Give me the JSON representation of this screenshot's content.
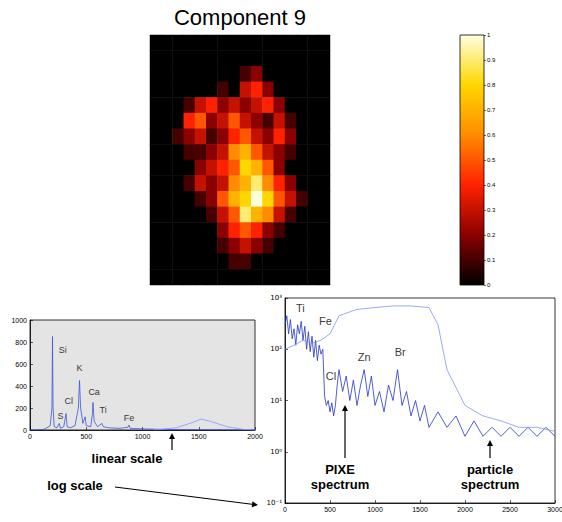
{
  "chart_data": [
    {
      "type": "heatmap",
      "title": "Component 9",
      "tick_labels": false,
      "colorbar_range": [
        0,
        1
      ],
      "colorbar_ticks": [
        0,
        0.1,
        0.2,
        0.3,
        0.4,
        0.5,
        0.6,
        0.7,
        0.8,
        0.9,
        1
      ],
      "cells": [
        [
          0,
          0,
          0,
          0,
          0,
          0,
          0,
          0,
          0,
          0,
          0,
          0,
          0,
          0,
          0,
          0
        ],
        [
          0,
          0,
          0,
          0,
          0,
          0,
          0,
          0,
          0,
          0,
          0,
          0,
          0,
          0,
          0,
          0
        ],
        [
          0,
          0,
          0,
          0,
          0,
          0,
          0,
          0,
          0.1,
          0.2,
          0,
          0,
          0,
          0,
          0,
          0
        ],
        [
          0,
          0,
          0,
          0,
          0,
          0,
          0.1,
          0,
          0.3,
          0.4,
          0.2,
          0,
          0,
          0,
          0,
          0
        ],
        [
          0,
          0,
          0,
          0.1,
          0.3,
          0.4,
          0.2,
          0.3,
          0.2,
          0.3,
          0.4,
          0.2,
          0,
          0,
          0,
          0
        ],
        [
          0,
          0,
          0,
          0.4,
          0.5,
          0.2,
          0.3,
          0.5,
          0.3,
          0.2,
          0.1,
          0.3,
          0.1,
          0,
          0,
          0
        ],
        [
          0,
          0,
          0.1,
          0.2,
          0.3,
          0.1,
          0.2,
          0.4,
          0.5,
          0.3,
          0.2,
          0.4,
          0.2,
          0,
          0,
          0
        ],
        [
          0,
          0,
          0,
          0.1,
          0.1,
          0.2,
          0.3,
          0.6,
          0.7,
          0.5,
          0.3,
          0.2,
          0.1,
          0,
          0,
          0
        ],
        [
          0,
          0,
          0,
          0,
          0.2,
          0.3,
          0.4,
          0.5,
          0.8,
          0.7,
          0.5,
          0.2,
          0,
          0,
          0,
          0
        ],
        [
          0,
          0,
          0,
          0.1,
          0.3,
          0.2,
          0.3,
          0.6,
          0.7,
          0.9,
          0.6,
          0.4,
          0.2,
          0,
          0,
          0
        ],
        [
          0,
          0,
          0,
          0,
          0.1,
          0.2,
          0.5,
          0.7,
          0.8,
          1.0,
          0.8,
          0.5,
          0.3,
          0.1,
          0,
          0
        ],
        [
          0,
          0,
          0,
          0,
          0,
          0.1,
          0.3,
          0.5,
          0.9,
          0.7,
          0.6,
          0.3,
          0.1,
          0,
          0,
          0
        ],
        [
          0,
          0,
          0,
          0,
          0,
          0,
          0.2,
          0.4,
          0.5,
          0.4,
          0.2,
          0.1,
          0,
          0,
          0,
          0
        ],
        [
          0,
          0,
          0,
          0,
          0,
          0,
          0.1,
          0.2,
          0.3,
          0.2,
          0.1,
          0,
          0,
          0,
          0,
          0
        ],
        [
          0,
          0,
          0,
          0,
          0,
          0,
          0,
          0.1,
          0.1,
          0,
          0,
          0,
          0,
          0,
          0,
          0
        ],
        [
          0,
          0,
          0,
          0,
          0,
          0,
          0,
          0,
          0,
          0,
          0,
          0,
          0,
          0,
          0,
          0
        ]
      ]
    },
    {
      "type": "line",
      "grid": false,
      "annotations": [
        "linear scale"
      ],
      "xlim": [
        0,
        2000
      ],
      "xticks": [
        0,
        500,
        1000,
        1500,
        2000
      ],
      "ylim": [
        0,
        1000
      ],
      "yticks": [
        0,
        200,
        400,
        600,
        800,
        1000
      ],
      "series": [
        {
          "color": "#3f55d6",
          "x": [
            0,
            120,
            150,
            180,
            195,
            200,
            205,
            215,
            240,
            260,
            270,
            300,
            320,
            330,
            360,
            400,
            430,
            440,
            450,
            470,
            490,
            500,
            540,
            555,
            560,
            570,
            600,
            640,
            650,
            700,
            800,
            870,
            880,
            890,
            1000,
            1200,
            1500,
            1700,
            2000
          ],
          "values": [
            0,
            5,
            20,
            40,
            200,
            850,
            200,
            30,
            20,
            60,
            15,
            30,
            150,
            30,
            20,
            40,
            200,
            450,
            200,
            60,
            120,
            40,
            30,
            150,
            250,
            80,
            30,
            60,
            30,
            20,
            15,
            25,
            45,
            15,
            10,
            5,
            3,
            2,
            1
          ]
        },
        {
          "color": "#7f9cff",
          "x": [
            1100,
            1300,
            1450,
            1520,
            1600,
            1750,
            1900,
            2000
          ],
          "values": [
            0,
            20,
            70,
            100,
            80,
            30,
            5,
            0
          ]
        }
      ],
      "peak_labels": [
        {
          "text": "Si",
          "x": 290,
          "y": 730
        },
        {
          "text": "Cl",
          "x": 345,
          "y": 260
        },
        {
          "text": "S",
          "x": 270,
          "y": 130
        },
        {
          "text": "K",
          "x": 440,
          "y": 560
        },
        {
          "text": "Ca",
          "x": 570,
          "y": 350
        },
        {
          "text": "Ti",
          "x": 650,
          "y": 180
        },
        {
          "text": "Fe",
          "x": 880,
          "y": 110
        }
      ]
    },
    {
      "type": "line",
      "log": "y",
      "grid": false,
      "annotations": [
        "log scale",
        "PIXE spectrum",
        "particle spectrum"
      ],
      "xlim": [
        0,
        3000
      ],
      "xticks": [
        0,
        500,
        1000,
        1500,
        2000,
        2500,
        3000
      ],
      "ylim": [
        0.1,
        1000
      ],
      "yticks": [
        {
          "value": 0.1,
          "label": "10⁻¹"
        },
        {
          "value": 1,
          "label": "10⁰"
        },
        {
          "value": 10,
          "label": "10¹"
        },
        {
          "value": 100,
          "label": "10²"
        },
        {
          "value": 1000,
          "label": "10³"
        }
      ],
      "series": [
        {
          "color": "#2436c4",
          "x": [
            0,
            20,
            40,
            60,
            80,
            100,
            120,
            140,
            160,
            180,
            200,
            220,
            240,
            260,
            280,
            300,
            320,
            340,
            360,
            380,
            400,
            420,
            440,
            460,
            480,
            500,
            520,
            540,
            560,
            580,
            600,
            640,
            680,
            720,
            760,
            800,
            840,
            880,
            920,
            960,
            1000,
            1050,
            1100,
            1150,
            1200,
            1250,
            1300,
            1350,
            1400,
            1450,
            1500,
            1550,
            1600,
            1700,
            1800,
            1900,
            2000,
            2100,
            2200,
            2300,
            2400,
            2500,
            2600,
            2700,
            2800,
            2900,
            3000
          ],
          "values": [
            300,
            450,
            200,
            380,
            160,
            250,
            120,
            300,
            200,
            350,
            150,
            280,
            100,
            220,
            90,
            180,
            70,
            150,
            60,
            120,
            80,
            100,
            12,
            8,
            10,
            6,
            9,
            5,
            8,
            20,
            40,
            15,
            30,
            10,
            25,
            8,
            20,
            40,
            12,
            30,
            8,
            15,
            6,
            20,
            10,
            40,
            8,
            15,
            5,
            10,
            4,
            8,
            3,
            6,
            3,
            5,
            2,
            4,
            2,
            3,
            2,
            3,
            2,
            3,
            2,
            3,
            2
          ]
        },
        {
          "color": "#8092ff",
          "x": [
            0,
            100,
            200,
            300,
            400,
            500,
            600,
            800,
            1000,
            1200,
            1400,
            1600,
            1700,
            1800,
            2000,
            2200,
            2400,
            2600,
            2800,
            3000
          ],
          "values": [
            100,
            120,
            150,
            130,
            150,
            200,
            450,
            600,
            650,
            700,
            700,
            650,
            300,
            40,
            8,
            5,
            4,
            3,
            3,
            2.5
          ]
        }
      ],
      "peak_labels": [
        {
          "text": "Ti",
          "x": 170,
          "y": 650
        },
        {
          "text": "Fe",
          "x": 450,
          "y": 350
        },
        {
          "text": "Cl",
          "x": 510,
          "y": 30
        },
        {
          "text": "Zn",
          "x": 880,
          "y": 70
        },
        {
          "text": "Br",
          "x": 1280,
          "y": 90
        }
      ]
    }
  ]
}
